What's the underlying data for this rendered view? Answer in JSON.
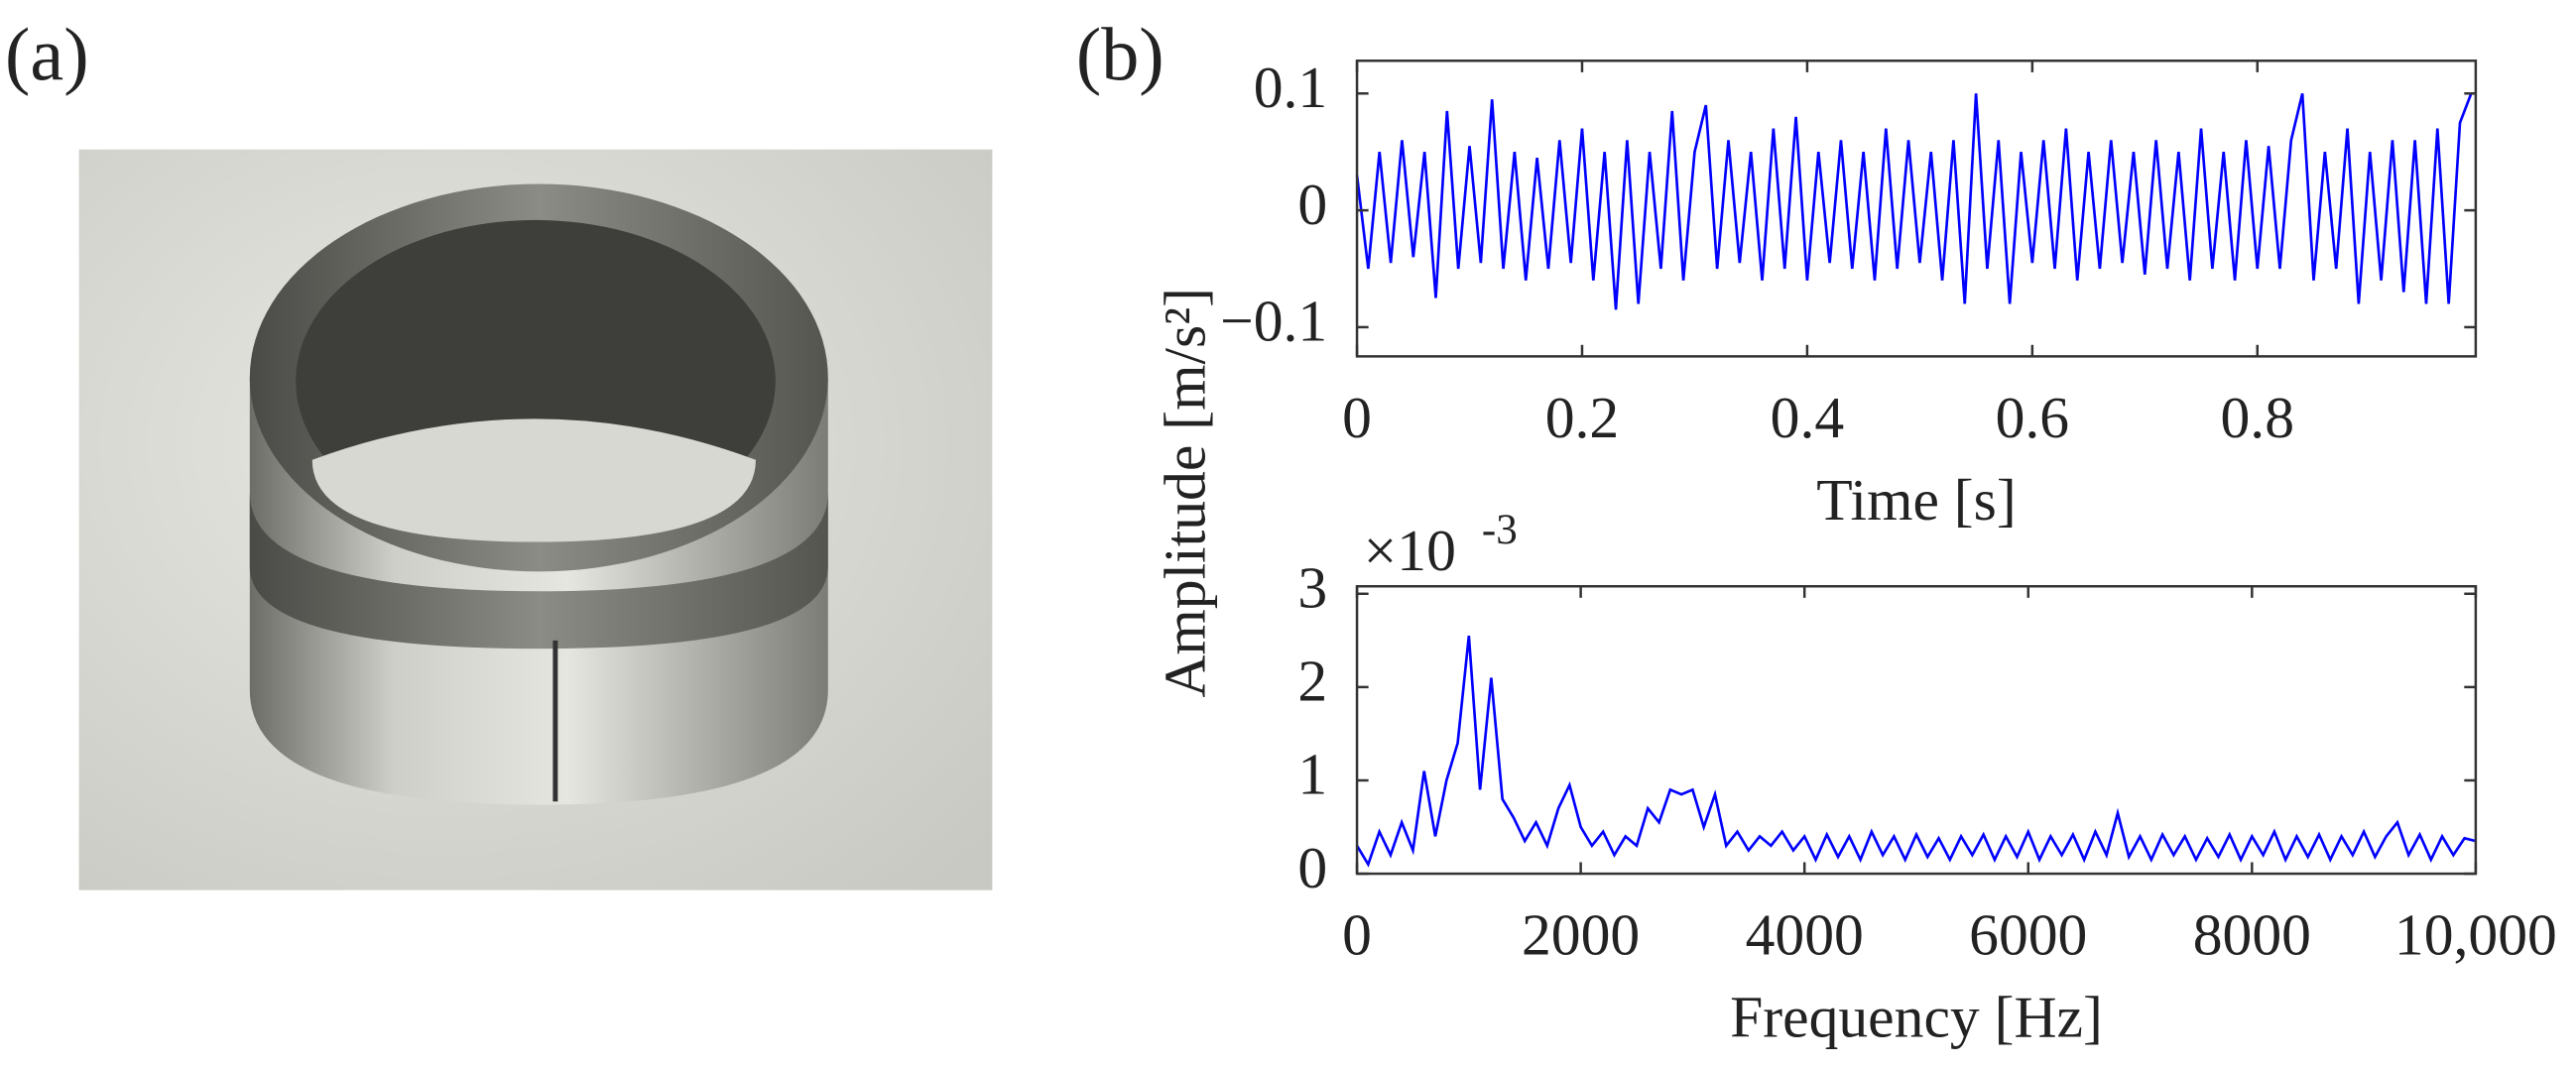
{
  "panel_labels": [
    "(a)",
    "(b)"
  ],
  "chart_data": [
    {
      "type": "line",
      "ylabel": "Amplitude [m/s²]",
      "xlabel": "Time [s]",
      "color": "#0000ff",
      "xlim": [
        0,
        0.994
      ],
      "ylim": [
        -0.125,
        0.128
      ],
      "xticks": [
        0,
        0.2,
        0.4,
        0.6,
        0.8
      ],
      "yticks": [
        {
          "value": -0.1,
          "label": "−0.1"
        },
        0,
        0.1
      ],
      "x": [
        0,
        0.01,
        0.02,
        0.03,
        0.04,
        0.05,
        0.06,
        0.07,
        0.08,
        0.09,
        0.1,
        0.11,
        0.12,
        0.13,
        0.14,
        0.15,
        0.16,
        0.17,
        0.18,
        0.19,
        0.2,
        0.21,
        0.22,
        0.23,
        0.24,
        0.25,
        0.26,
        0.27,
        0.28,
        0.29,
        0.3,
        0.31,
        0.32,
        0.33,
        0.34,
        0.35,
        0.36,
        0.37,
        0.38,
        0.39,
        0.4,
        0.41,
        0.42,
        0.43,
        0.44,
        0.45,
        0.46,
        0.47,
        0.48,
        0.49,
        0.5,
        0.51,
        0.52,
        0.53,
        0.54,
        0.55,
        0.56,
        0.57,
        0.58,
        0.59,
        0.6,
        0.61,
        0.62,
        0.63,
        0.64,
        0.65,
        0.66,
        0.67,
        0.68,
        0.69,
        0.7,
        0.71,
        0.72,
        0.73,
        0.74,
        0.75,
        0.76,
        0.77,
        0.78,
        0.79,
        0.8,
        0.81,
        0.82,
        0.83,
        0.84,
        0.85,
        0.86,
        0.87,
        0.88,
        0.89,
        0.9,
        0.91,
        0.92,
        0.93,
        0.94,
        0.95,
        0.96,
        0.97,
        0.98,
        0.99
      ],
      "values": [
        0.03,
        -0.05,
        0.05,
        -0.045,
        0.06,
        -0.04,
        0.05,
        -0.075,
        0.085,
        -0.05,
        0.055,
        -0.045,
        0.095,
        -0.05,
        0.05,
        -0.06,
        0.045,
        -0.05,
        0.06,
        -0.045,
        0.07,
        -0.06,
        0.05,
        -0.085,
        0.06,
        -0.08,
        0.05,
        -0.05,
        0.085,
        -0.06,
        0.05,
        0.09,
        -0.05,
        0.06,
        -0.045,
        0.05,
        -0.06,
        0.07,
        -0.05,
        0.08,
        -0.06,
        0.05,
        -0.045,
        0.06,
        -0.05,
        0.05,
        -0.06,
        0.07,
        -0.05,
        0.06,
        -0.045,
        0.05,
        -0.06,
        0.06,
        -0.08,
        0.1,
        -0.05,
        0.06,
        -0.08,
        0.05,
        -0.045,
        0.06,
        -0.05,
        0.07,
        -0.06,
        0.05,
        -0.05,
        0.06,
        -0.045,
        0.05,
        -0.055,
        0.06,
        -0.05,
        0.05,
        -0.06,
        0.07,
        -0.05,
        0.05,
        -0.06,
        0.06,
        -0.05,
        0.055,
        -0.05,
        0.06,
        0.1,
        -0.06,
        0.05,
        -0.05,
        0.07,
        -0.08,
        0.05,
        -0.06,
        0.06,
        -0.07,
        0.06,
        -0.08,
        0.07,
        -0.08,
        0.075,
        0.1
      ]
    },
    {
      "type": "line",
      "xlabel": "Frequency [Hz]",
      "color": "#0000ff",
      "y_multiplier": {
        "base": "×10",
        "exponent": "-3"
      },
      "xlim": [
        0,
        10000
      ],
      "ylim": [
        0,
        3.08
      ],
      "xticks": [
        0,
        2000,
        4000,
        6000,
        8000,
        {
          "value": 10000,
          "label": "10,000"
        }
      ],
      "yticks": [
        0,
        1,
        2,
        3
      ],
      "x": [
        0,
        100,
        200,
        300,
        400,
        500,
        600,
        700,
        800,
        900,
        1000,
        1100,
        1200,
        1300,
        1400,
        1500,
        1600,
        1700,
        1800,
        1900,
        2000,
        2100,
        2200,
        2300,
        2400,
        2500,
        2600,
        2700,
        2800,
        2900,
        3000,
        3100,
        3200,
        3300,
        3400,
        3500,
        3600,
        3700,
        3800,
        3900,
        4000,
        4100,
        4200,
        4300,
        4400,
        4500,
        4600,
        4700,
        4800,
        4900,
        5000,
        5100,
        5200,
        5300,
        5400,
        5500,
        5600,
        5700,
        5800,
        5900,
        6000,
        6100,
        6200,
        6300,
        6400,
        6500,
        6600,
        6700,
        6800,
        6900,
        7000,
        7100,
        7200,
        7300,
        7400,
        7500,
        7600,
        7700,
        7800,
        7900,
        8000,
        8100,
        8200,
        8300,
        8400,
        8500,
        8600,
        8700,
        8800,
        8900,
        9000,
        9100,
        9200,
        9300,
        9400,
        9500,
        9600,
        9700,
        9800,
        9900,
        10000
      ],
      "values": [
        0.3,
        0.1,
        0.45,
        0.2,
        0.55,
        0.25,
        1.1,
        0.4,
        1.0,
        1.4,
        2.55,
        0.9,
        2.1,
        0.8,
        0.6,
        0.35,
        0.55,
        0.3,
        0.7,
        0.95,
        0.5,
        0.3,
        0.45,
        0.2,
        0.4,
        0.3,
        0.7,
        0.55,
        0.9,
        0.85,
        0.9,
        0.5,
        0.85,
        0.3,
        0.45,
        0.25,
        0.4,
        0.3,
        0.45,
        0.25,
        0.4,
        0.15,
        0.42,
        0.18,
        0.4,
        0.15,
        0.45,
        0.2,
        0.4,
        0.15,
        0.42,
        0.18,
        0.38,
        0.15,
        0.4,
        0.2,
        0.42,
        0.15,
        0.4,
        0.18,
        0.45,
        0.15,
        0.4,
        0.2,
        0.42,
        0.15,
        0.45,
        0.2,
        0.65,
        0.18,
        0.4,
        0.15,
        0.42,
        0.2,
        0.4,
        0.15,
        0.38,
        0.18,
        0.42,
        0.15,
        0.4,
        0.2,
        0.45,
        0.15,
        0.4,
        0.18,
        0.42,
        0.15,
        0.4,
        0.2,
        0.45,
        0.18,
        0.4,
        0.55,
        0.2,
        0.42,
        0.15,
        0.4,
        0.2,
        0.38,
        0.35
      ]
    }
  ]
}
